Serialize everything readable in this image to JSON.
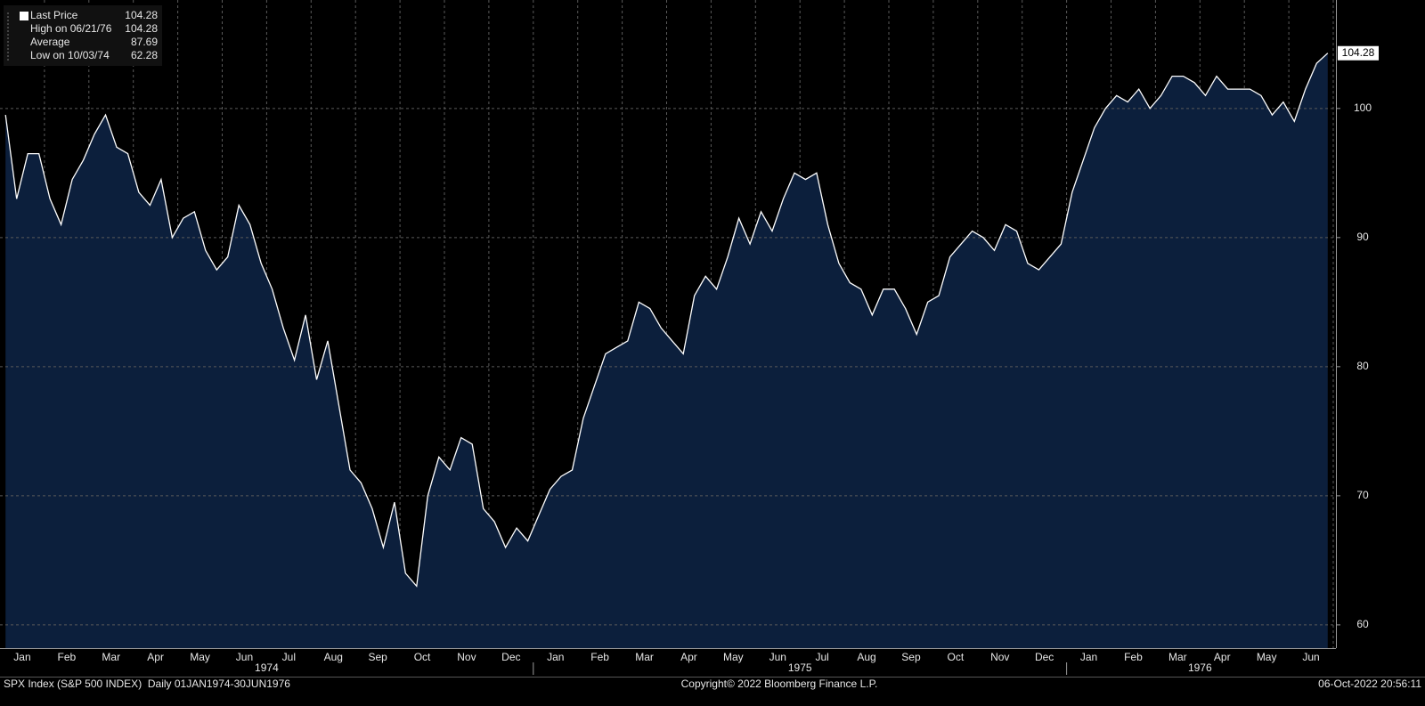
{
  "chart_data": {
    "type": "area",
    "legend": [
      {
        "label": "Last Price",
        "value": 104.28
      },
      {
        "label": "High on 06/21/76",
        "value": 104.28
      },
      {
        "label": "Average",
        "value": 87.69
      },
      {
        "label": "Low on 10/03/74",
        "value": 62.28
      }
    ],
    "years": [
      "1974",
      "1975",
      "1976"
    ],
    "months": [
      {
        "label": "Jan",
        "values": [
          99.5,
          93,
          96.5,
          96.5
        ]
      },
      {
        "label": "Feb",
        "values": [
          93,
          91,
          94.5,
          96
        ]
      },
      {
        "label": "Mar",
        "values": [
          98,
          99.5,
          97,
          96.5
        ]
      },
      {
        "label": "Apr",
        "values": [
          93.5,
          92.5,
          94.5,
          90
        ]
      },
      {
        "label": "May",
        "values": [
          91.5,
          92,
          89,
          87.5
        ]
      },
      {
        "label": "Jun",
        "values": [
          88.5,
          92.5,
          91,
          88
        ]
      },
      {
        "label": "Jul",
        "values": [
          86,
          83,
          80.5,
          84
        ]
      },
      {
        "label": "Aug",
        "values": [
          79,
          82,
          77,
          72
        ]
      },
      {
        "label": "Sep",
        "values": [
          71,
          69,
          66,
          69.5
        ]
      },
      {
        "label": "Oct",
        "values": [
          64,
          63,
          70,
          73
        ]
      },
      {
        "label": "Nov",
        "values": [
          72,
          74.5,
          74,
          69
        ]
      },
      {
        "label": "Dec",
        "values": [
          68,
          66,
          67.5,
          66.5
        ]
      },
      {
        "label": "Jan",
        "values": [
          68.5,
          70.5,
          71.5,
          72
        ]
      },
      {
        "label": "Feb",
        "values": [
          76,
          78.5,
          81,
          81.5
        ]
      },
      {
        "label": "Mar",
        "values": [
          82,
          85,
          84.5,
          83
        ]
      },
      {
        "label": "Apr",
        "values": [
          82,
          81,
          85.5,
          87
        ]
      },
      {
        "label": "May",
        "values": [
          86,
          88.5,
          91.5,
          89.5
        ]
      },
      {
        "label": "Jun",
        "values": [
          92,
          90.5,
          93,
          95
        ]
      },
      {
        "label": "Jul",
        "values": [
          94.5,
          95,
          91,
          88
        ]
      },
      {
        "label": "Aug",
        "values": [
          86.5,
          86,
          84,
          86
        ]
      },
      {
        "label": "Sep",
        "values": [
          86,
          84.5,
          82.5,
          85
        ]
      },
      {
        "label": "Oct",
        "values": [
          85.5,
          88.5,
          89.5,
          90.5
        ]
      },
      {
        "label": "Nov",
        "values": [
          90,
          89,
          91,
          90.5
        ]
      },
      {
        "label": "Dec",
        "values": [
          88,
          87.5,
          88.5,
          89.5
        ]
      },
      {
        "label": "Jan",
        "values": [
          93.5,
          96,
          98.5,
          100
        ]
      },
      {
        "label": "Feb",
        "values": [
          101,
          100.5,
          101.5,
          100
        ]
      },
      {
        "label": "Mar",
        "values": [
          101,
          102.5,
          102.5,
          102
        ]
      },
      {
        "label": "Apr",
        "values": [
          101,
          102.5,
          101.5,
          101.5
        ]
      },
      {
        "label": "May",
        "values": [
          101.5,
          101,
          99.5,
          100.5
        ]
      },
      {
        "label": "Jun",
        "values": [
          99,
          101.5,
          103.5,
          104.28
        ]
      }
    ],
    "ylim": [
      58.2,
      108.4
    ],
    "yticks": [
      60,
      70,
      80,
      90,
      100
    ],
    "grid": true,
    "line_color": "#ffffff",
    "fill_color": "#0c1f3c",
    "footer": {
      "left": "SPX Index (S&P 500 INDEX)  Daily 01JAN1974-30JUN1976",
      "center": "Copyright© 2022 Bloomberg Finance L.P.",
      "right": "06-Oct-2022 20:56:11"
    }
  }
}
